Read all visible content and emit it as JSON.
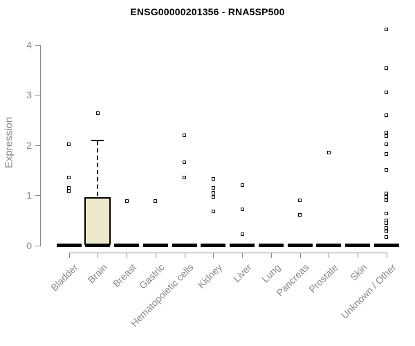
{
  "chart_data": {
    "type": "boxplot",
    "title": "ENSG00000201356 - RNA5SP500",
    "ylabel": "Expression",
    "xlabel": "",
    "ylim": [
      0,
      4.4
    ],
    "yticks": [
      0,
      1,
      2,
      3,
      4
    ],
    "grid": false,
    "legend": null,
    "colors": {
      "box_fill": "#EDE8CC",
      "box_border": "#000000",
      "point": "#000000",
      "axis": "#898989",
      "text": "#878787",
      "title": "#000000"
    },
    "categories": [
      "Bladder",
      "Brain",
      "Breast",
      "Gastric",
      "Hematopoietic cells",
      "Kidney",
      "Liver",
      "Lung",
      "Pancreas",
      "Prostate",
      "Skin",
      "Unknown / Other"
    ],
    "series": [
      {
        "category": "Bladder",
        "median": 0,
        "box": null,
        "points": [
          2.01,
          1.35,
          1.15,
          1.08
        ]
      },
      {
        "category": "Brain",
        "median": 0,
        "box": {
          "q1": 0,
          "q3": 0.96,
          "whisker_high": 2.11
        },
        "points": [
          2.64
        ]
      },
      {
        "category": "Breast",
        "median": 0,
        "box": null,
        "points": [
          0.88
        ]
      },
      {
        "category": "Gastric",
        "median": 0,
        "box": null,
        "points": [
          0.88
        ]
      },
      {
        "category": "Hematopoietic cells",
        "median": 0,
        "box": null,
        "points": [
          2.19,
          1.66,
          1.35
        ]
      },
      {
        "category": "Kidney",
        "median": 0,
        "box": null,
        "points": [
          1.32,
          1.14,
          1.05,
          0.97,
          0.68
        ]
      },
      {
        "category": "Liver",
        "median": 0,
        "box": null,
        "points": [
          1.2,
          0.72,
          0.22
        ]
      },
      {
        "category": "Lung",
        "median": 0,
        "box": null,
        "points": []
      },
      {
        "category": "Pancreas",
        "median": 0,
        "box": null,
        "points": [
          0.9,
          0.61
        ]
      },
      {
        "category": "Prostate",
        "median": 0,
        "box": null,
        "points": [
          1.85
        ]
      },
      {
        "category": "Skin",
        "median": 0,
        "box": null,
        "points": []
      },
      {
        "category": "Unknown / Other",
        "median": 0,
        "box": null,
        "points": [
          4.31,
          3.54,
          3.05,
          2.59,
          2.25,
          2.18,
          2.01,
          1.82,
          1.5,
          1.04,
          0.97,
          0.9,
          0.64,
          0.5,
          0.44,
          0.35,
          0.28,
          0.16
        ]
      }
    ]
  }
}
